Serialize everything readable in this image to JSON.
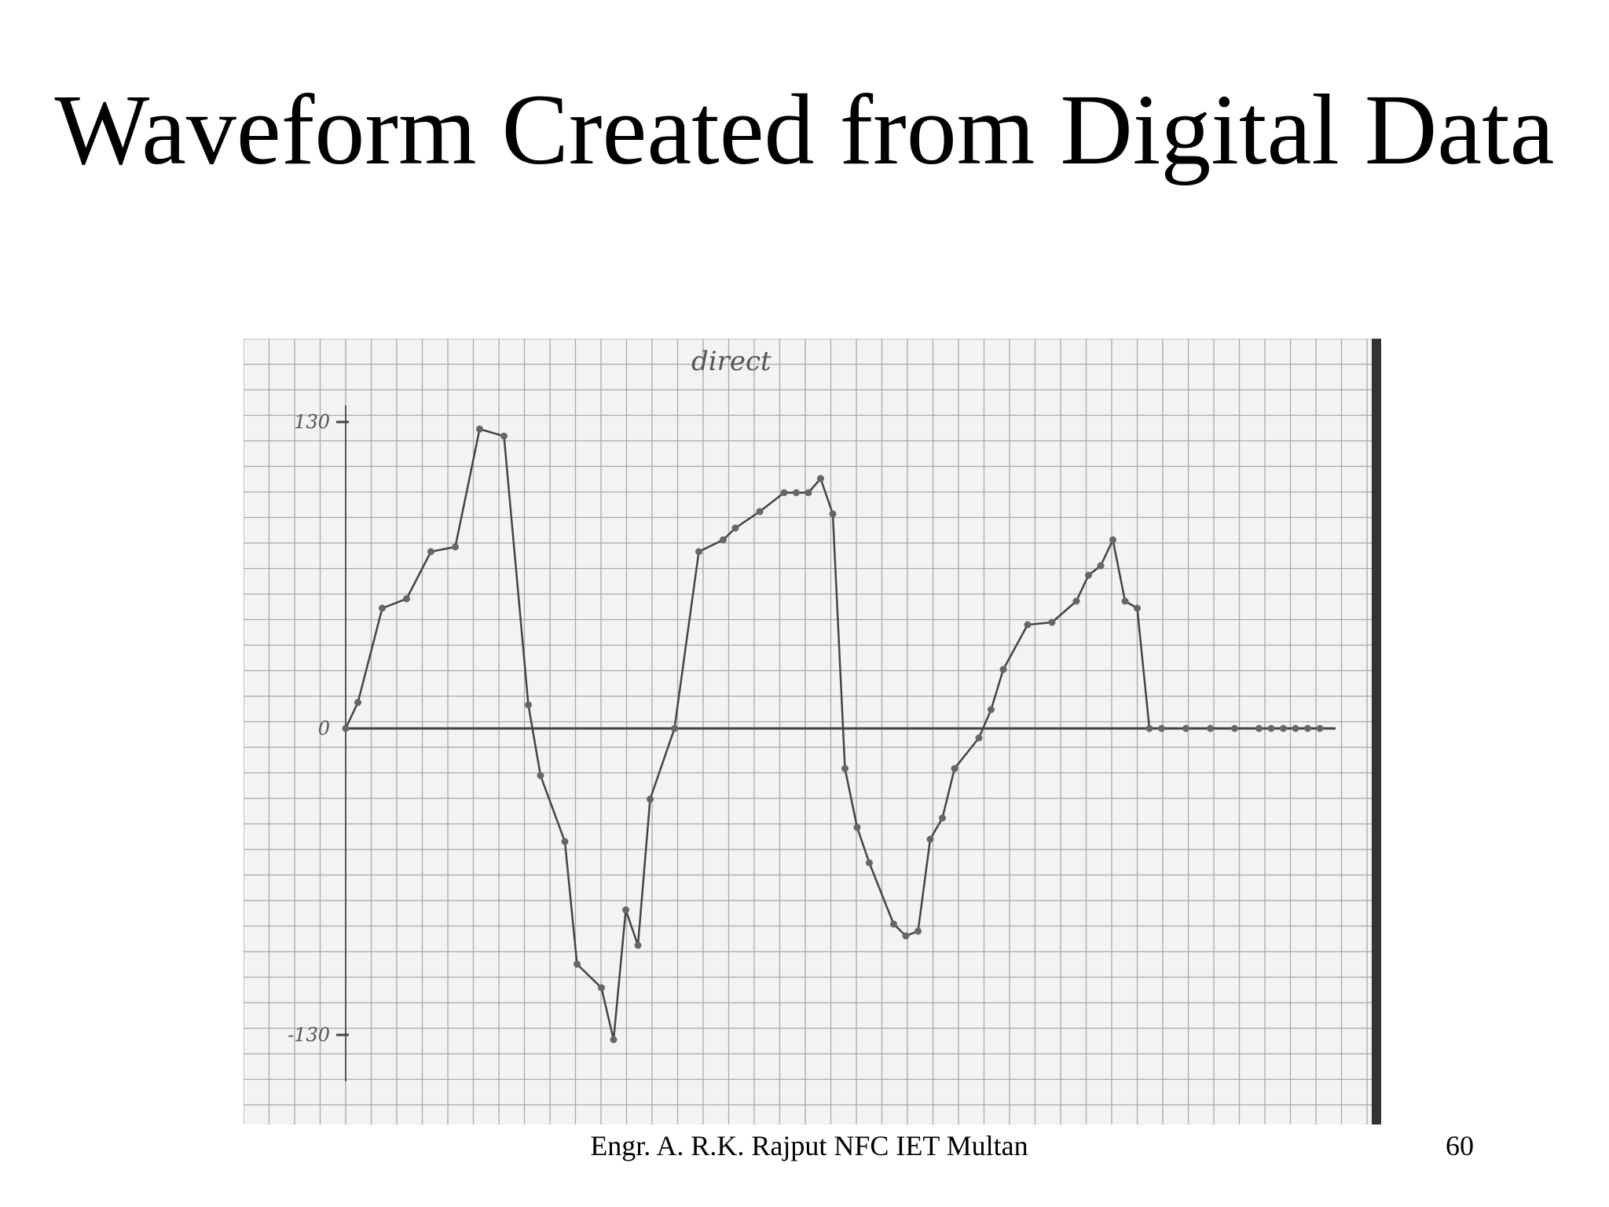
{
  "slide": {
    "title": "Waveform Created from Digital Data",
    "footer": "Engr. A. R.K. Rajput NFC IET Multan",
    "page_number": "60"
  },
  "chart_data": {
    "type": "line",
    "title": "direct",
    "xlabel": "",
    "ylabel": "",
    "ylim": [
      -130,
      130
    ],
    "yticks": [
      "130",
      "0",
      "-130"
    ],
    "grid": true,
    "series": [
      {
        "x": [
          0,
          1,
          3,
          5,
          7,
          9,
          11,
          13,
          15,
          16,
          18,
          19,
          21,
          22,
          23,
          24,
          25,
          27,
          29,
          31,
          32,
          34,
          36,
          37,
          38,
          39,
          40,
          41,
          42,
          43,
          45,
          46,
          47,
          48,
          49,
          50,
          52,
          53,
          54,
          56,
          58,
          60,
          61,
          62,
          63,
          64,
          65,
          66,
          67,
          69,
          71,
          73,
          75,
          76,
          77,
          78,
          79,
          80
        ],
        "y": [
          0,
          11,
          51,
          55,
          75,
          77,
          127,
          124,
          10,
          -20,
          -48,
          -100,
          -110,
          -132,
          -77,
          -92,
          -30,
          0,
          75,
          80,
          85,
          92,
          100,
          100,
          100,
          106,
          91,
          -17,
          -42,
          -57,
          -83,
          -88,
          -86,
          -47,
          -38,
          -17,
          -4,
          8,
          25,
          44,
          45,
          54,
          65,
          69,
          80,
          54,
          51,
          0,
          0,
          0,
          0,
          0,
          0,
          0,
          0,
          0,
          0,
          0
        ]
      }
    ]
  }
}
